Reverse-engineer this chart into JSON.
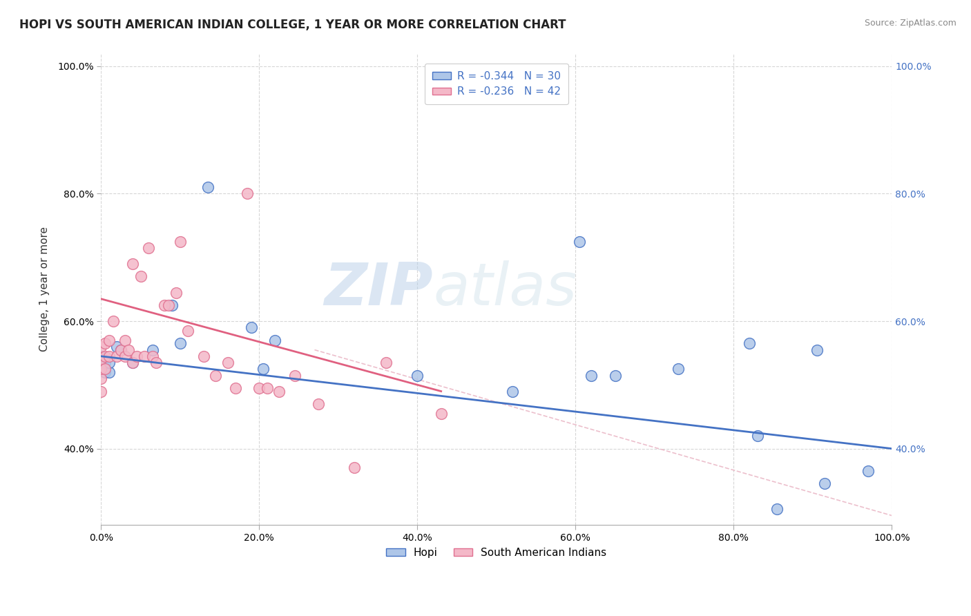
{
  "title": "HOPI VS SOUTH AMERICAN INDIAN COLLEGE, 1 YEAR OR MORE CORRELATION CHART",
  "source_text": "Source: ZipAtlas.com",
  "ylabel": "College, 1 year or more",
  "xlim": [
    0.0,
    1.0
  ],
  "ylim": [
    0.28,
    1.02
  ],
  "xtick_positions": [
    0.0,
    0.2,
    0.4,
    0.6,
    0.8,
    1.0
  ],
  "xtick_labels": [
    "0.0%",
    "20.0%",
    "40.0%",
    "60.0%",
    "80.0%",
    "100.0%"
  ],
  "ytick_positions": [
    0.4,
    0.6,
    0.8,
    1.0
  ],
  "ytick_labels": [
    "40.0%",
    "60.0%",
    "80.0%",
    "100.0%"
  ],
  "right_ytick_color": "#4472c4",
  "legend_line1": "R = -0.344   N = 30",
  "legend_line2": "R = -0.236   N = 42",
  "hopi_color": "#aec6e8",
  "hopi_edge_color": "#4472c4",
  "sa_color": "#f4b8c8",
  "sa_edge_color": "#e07090",
  "trendline_hopi_color": "#4472c4",
  "trendline_sa_color": "#e06080",
  "dashed_line_color": "#e8b0c0",
  "background_color": "#ffffff",
  "grid_color": "#cccccc",
  "watermark_color": "#dce8f0",
  "hopi_scatter_x": [
    0.0,
    0.0,
    0.0,
    0.0,
    0.005,
    0.005,
    0.01,
    0.01,
    0.02,
    0.025,
    0.04,
    0.065,
    0.09,
    0.1,
    0.135,
    0.19,
    0.205,
    0.22,
    0.4,
    0.52,
    0.605,
    0.62,
    0.65,
    0.73,
    0.82,
    0.83,
    0.855,
    0.905,
    0.915,
    0.97
  ],
  "hopi_scatter_y": [
    0.545,
    0.54,
    0.535,
    0.545,
    0.52,
    0.535,
    0.52,
    0.535,
    0.56,
    0.555,
    0.535,
    0.555,
    0.625,
    0.565,
    0.81,
    0.59,
    0.525,
    0.57,
    0.515,
    0.49,
    0.725,
    0.515,
    0.515,
    0.525,
    0.565,
    0.42,
    0.305,
    0.555,
    0.345,
    0.365
  ],
  "sa_scatter_x": [
    0.0,
    0.0,
    0.0,
    0.0,
    0.0,
    0.005,
    0.005,
    0.005,
    0.01,
    0.01,
    0.015,
    0.02,
    0.025,
    0.03,
    0.03,
    0.035,
    0.04,
    0.04,
    0.045,
    0.05,
    0.055,
    0.06,
    0.065,
    0.07,
    0.08,
    0.085,
    0.095,
    0.1,
    0.11,
    0.13,
    0.145,
    0.16,
    0.17,
    0.185,
    0.2,
    0.21,
    0.225,
    0.245,
    0.275,
    0.32,
    0.36,
    0.43
  ],
  "sa_scatter_y": [
    0.49,
    0.51,
    0.525,
    0.54,
    0.56,
    0.525,
    0.545,
    0.565,
    0.545,
    0.57,
    0.6,
    0.545,
    0.555,
    0.545,
    0.57,
    0.555,
    0.535,
    0.69,
    0.545,
    0.67,
    0.545,
    0.715,
    0.545,
    0.535,
    0.625,
    0.625,
    0.645,
    0.725,
    0.585,
    0.545,
    0.515,
    0.535,
    0.495,
    0.8,
    0.495,
    0.495,
    0.49,
    0.515,
    0.47,
    0.37,
    0.535,
    0.455
  ],
  "hopi_trendline_x": [
    0.0,
    1.0
  ],
  "hopi_trendline_y": [
    0.545,
    0.4
  ],
  "sa_trendline_x": [
    0.0,
    0.43
  ],
  "sa_trendline_y": [
    0.635,
    0.49
  ],
  "dashed_line_x": [
    0.27,
    1.0
  ],
  "dashed_line_y": [
    0.555,
    0.295
  ],
  "title_fontsize": 12,
  "axis_label_fontsize": 11,
  "tick_fontsize": 10,
  "legend_fontsize": 11
}
